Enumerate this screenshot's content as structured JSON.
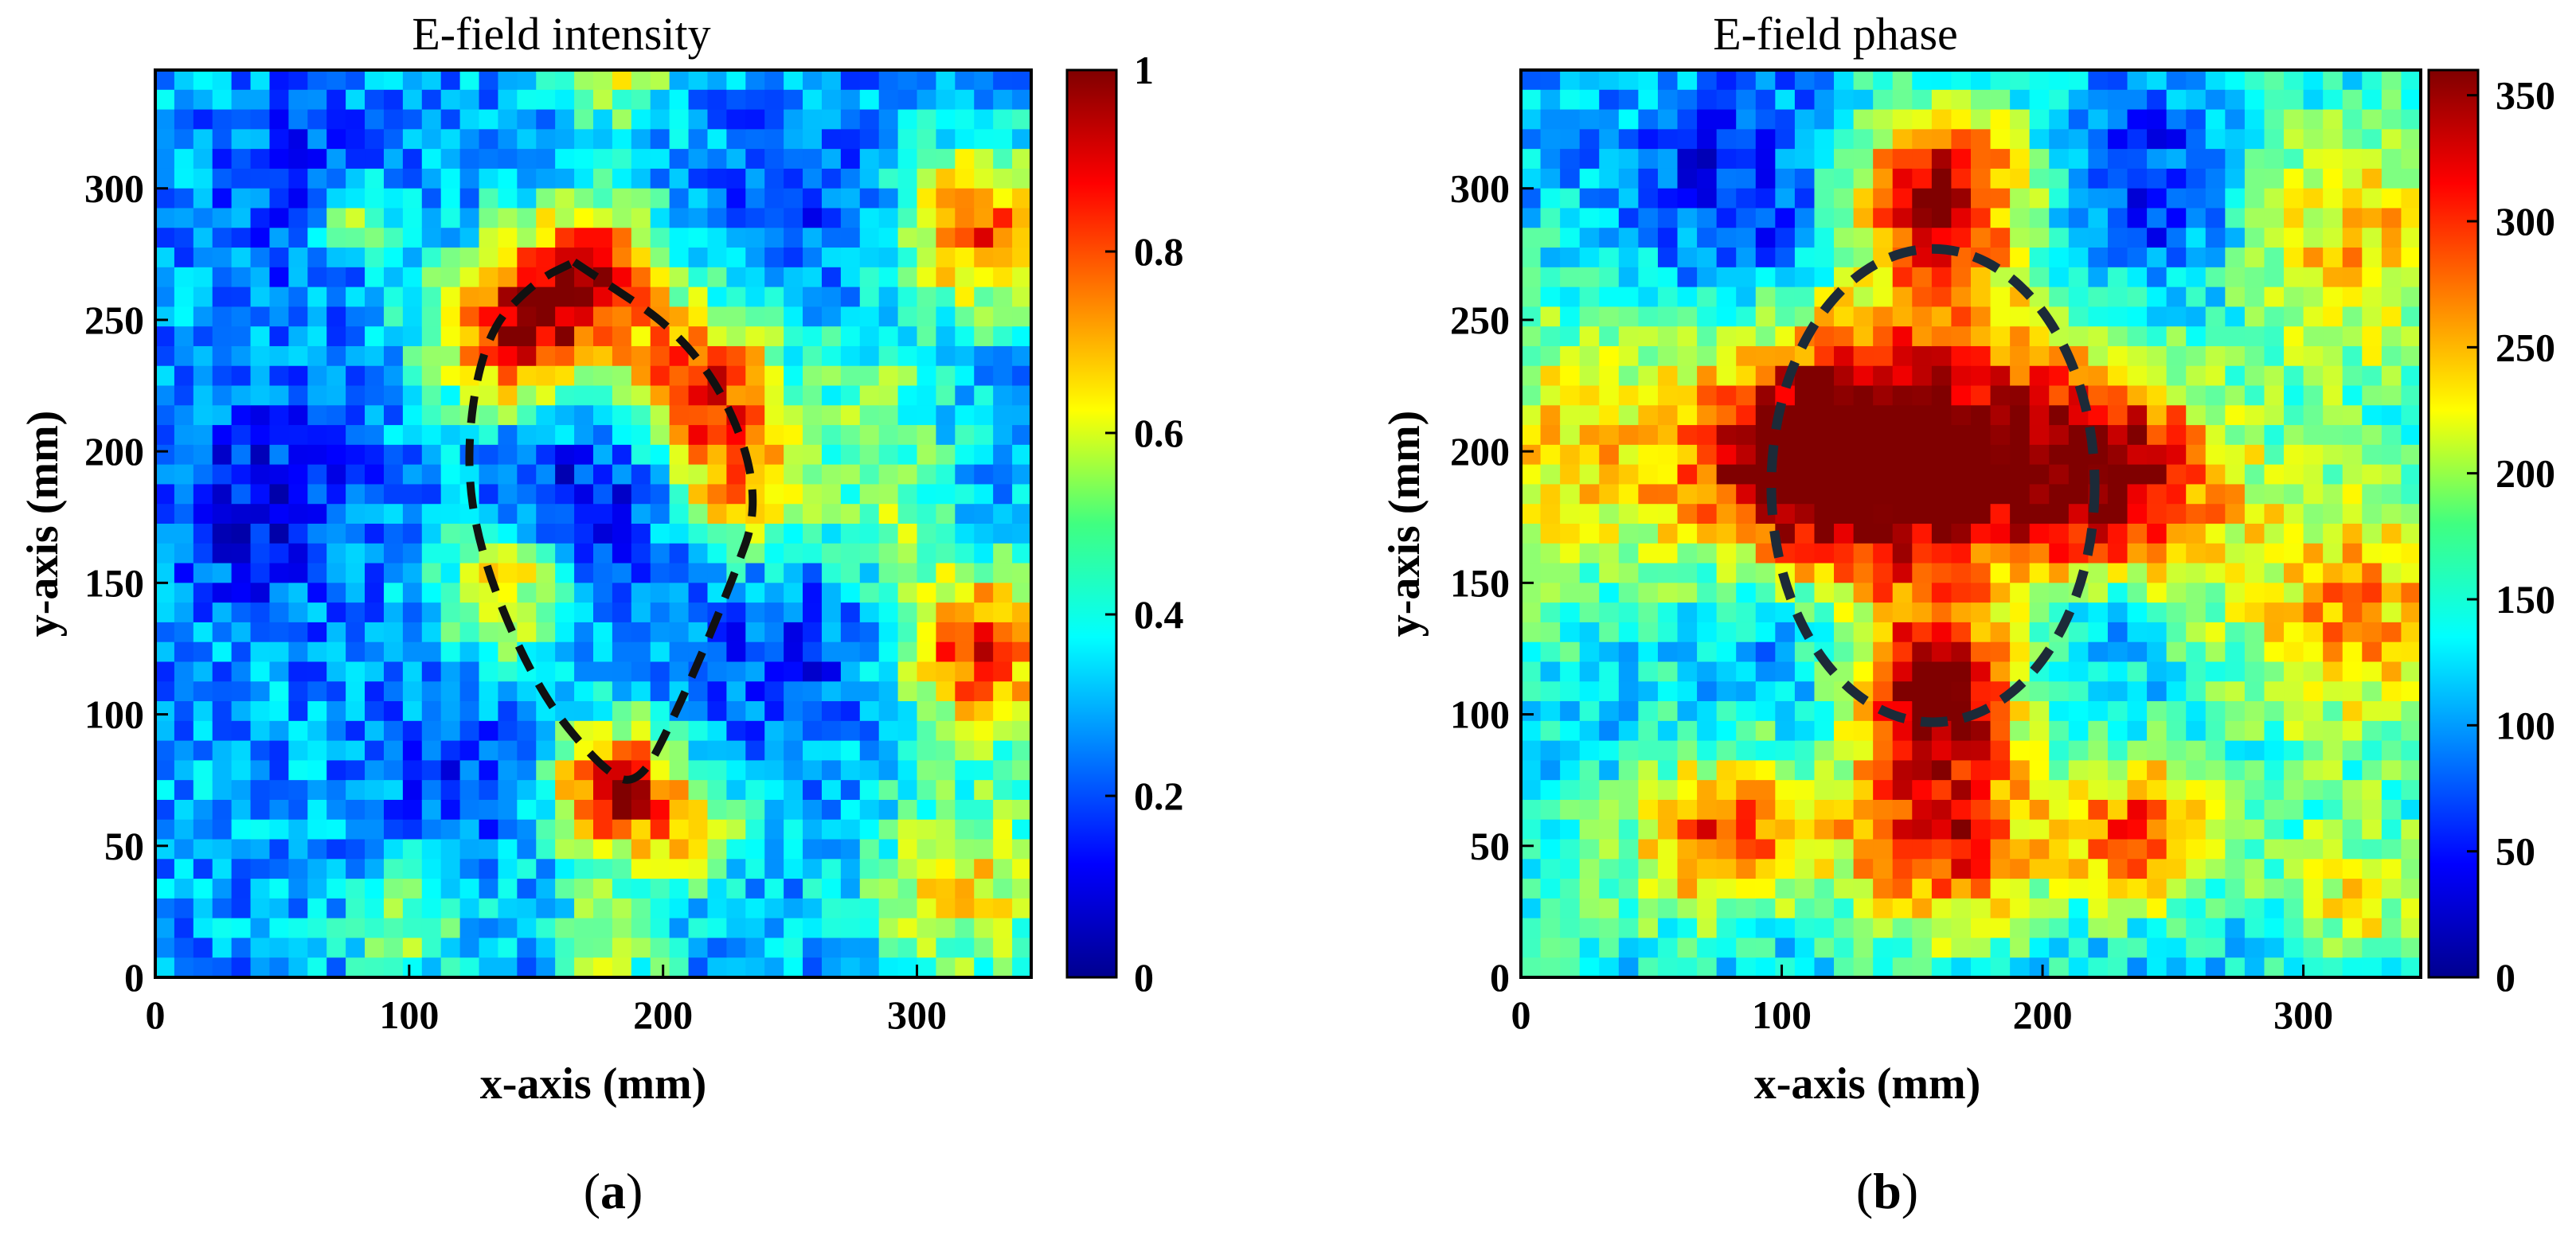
{
  "chart_data": [
    {
      "type": "heatmap",
      "panel_label": "(a)",
      "panel_letter": "a",
      "title": "E-field intensity",
      "xlabel": "x-axis (mm)",
      "ylabel": "y-axis (mm)",
      "xlim": [
        0,
        345
      ],
      "ylim": [
        0,
        345
      ],
      "xticks": [
        0,
        100,
        200,
        300
      ],
      "yticks": [
        0,
        50,
        100,
        150,
        200,
        250,
        300
      ],
      "colorbar": {
        "min": 0,
        "max": 1,
        "ticks": [
          "0",
          "0.2",
          "0.4",
          "0.6",
          "0.8",
          "1"
        ],
        "tick_values": [
          0,
          0.2,
          0.4,
          0.6,
          0.8,
          1
        ]
      },
      "grid_resolution": 46,
      "field_base": 0.28,
      "blobs": [
        {
          "x": 140,
          "y": 245,
          "r": 22,
          "v": 0.62
        },
        {
          "x": 172,
          "y": 268,
          "r": 20,
          "v": 0.55
        },
        {
          "x": 215,
          "y": 225,
          "r": 22,
          "v": 0.6
        },
        {
          "x": 232,
          "y": 185,
          "r": 18,
          "v": 0.42
        },
        {
          "x": 138,
          "y": 148,
          "r": 18,
          "v": 0.4
        },
        {
          "x": 182,
          "y": 72,
          "r": 18,
          "v": 0.68
        },
        {
          "x": 325,
          "y": 125,
          "r": 22,
          "v": 0.6
        },
        {
          "x": 325,
          "y": 285,
          "r": 22,
          "v": 0.55
        },
        {
          "x": 318,
          "y": 35,
          "r": 28,
          "v": 0.35
        },
        {
          "x": 180,
          "y": 15,
          "r": 16,
          "v": 0.3
        },
        {
          "x": 100,
          "y": 20,
          "r": 16,
          "v": 0.25
        },
        {
          "x": 215,
          "y": 55,
          "r": 14,
          "v": 0.28
        },
        {
          "x": 182,
          "y": 345,
          "r": 16,
          "v": 0.3
        },
        {
          "x": 285,
          "y": 220,
          "r": 20,
          "v": 0.2
        },
        {
          "x": 290,
          "y": 175,
          "r": 18,
          "v": 0.22
        },
        {
          "x": 78,
          "y": 290,
          "r": 12,
          "v": 0.3
        },
        {
          "x": 40,
          "y": 180,
          "r": 30,
          "v": -0.15
        },
        {
          "x": 170,
          "y": 185,
          "r": 28,
          "v": -0.18
        },
        {
          "x": 250,
          "y": 120,
          "r": 25,
          "v": -0.12
        },
        {
          "x": 60,
          "y": 300,
          "r": 25,
          "v": -0.12
        },
        {
          "x": 260,
          "y": 300,
          "r": 25,
          "v": -0.1
        },
        {
          "x": 120,
          "y": 80,
          "r": 22,
          "v": -0.1
        }
      ],
      "ellipse": {
        "points": [
          [
            165,
            272
          ],
          [
            215,
            240
          ],
          [
            240,
            185
          ],
          [
            225,
            145
          ],
          [
            205,
            100
          ],
          [
            190,
            72
          ],
          [
            175,
            80
          ],
          [
            150,
            110
          ],
          [
            128,
            160
          ],
          [
            122,
            200
          ],
          [
            130,
            245
          ],
          [
            150,
            265
          ],
          [
            165,
            272
          ]
        ],
        "color": "#111111"
      }
    },
    {
      "type": "heatmap",
      "panel_label": "(b)",
      "panel_letter": "b",
      "title": "E-field phase",
      "xlabel": "x-axis (mm)",
      "ylabel": "y-axis (mm)",
      "xlim": [
        0,
        345
      ],
      "ylim": [
        0,
        345
      ],
      "xticks": [
        0,
        100,
        200,
        300
      ],
      "yticks": [
        0,
        50,
        100,
        150,
        200,
        250,
        300
      ],
      "colorbar": {
        "min": 0,
        "max": 360,
        "ticks": [
          "0",
          "50",
          "100",
          "150",
          "200",
          "250",
          "300",
          "350"
        ],
        "tick_values": [
          0,
          50,
          100,
          150,
          200,
          250,
          300,
          350
        ]
      },
      "grid_resolution": 46,
      "field_base": 0.3,
      "blobs": [
        {
          "x": 160,
          "y": 200,
          "r": 45,
          "v": 0.65
        },
        {
          "x": 160,
          "y": 300,
          "r": 25,
          "v": 0.65
        },
        {
          "x": 160,
          "y": 110,
          "r": 20,
          "v": 0.6
        },
        {
          "x": 110,
          "y": 195,
          "r": 30,
          "v": 0.55
        },
        {
          "x": 230,
          "y": 190,
          "r": 30,
          "v": 0.55
        },
        {
          "x": 160,
          "y": 55,
          "r": 30,
          "v": 0.6
        },
        {
          "x": 80,
          "y": 55,
          "r": 22,
          "v": 0.5
        },
        {
          "x": 240,
          "y": 55,
          "r": 22,
          "v": 0.5
        },
        {
          "x": 25,
          "y": 200,
          "r": 45,
          "v": 0.35
        },
        {
          "x": 320,
          "y": 280,
          "r": 40,
          "v": 0.38
        },
        {
          "x": 320,
          "y": 140,
          "r": 40,
          "v": 0.42
        },
        {
          "x": 30,
          "y": 40,
          "r": 30,
          "v": 0.15
        },
        {
          "x": 320,
          "y": 30,
          "r": 25,
          "v": 0.3
        },
        {
          "x": 85,
          "y": 295,
          "r": 30,
          "v": -0.2
        },
        {
          "x": 245,
          "y": 295,
          "r": 30,
          "v": -0.2
        },
        {
          "x": 95,
          "y": 140,
          "r": 22,
          "v": -0.15
        },
        {
          "x": 220,
          "y": 135,
          "r": 22,
          "v": -0.15
        },
        {
          "x": 110,
          "y": 10,
          "r": 20,
          "v": 0.0
        }
      ],
      "ellipse": {
        "cx": 158,
        "cy": 187,
        "rx": 62,
        "ry": 90,
        "color": "#1c2a38"
      }
    }
  ]
}
